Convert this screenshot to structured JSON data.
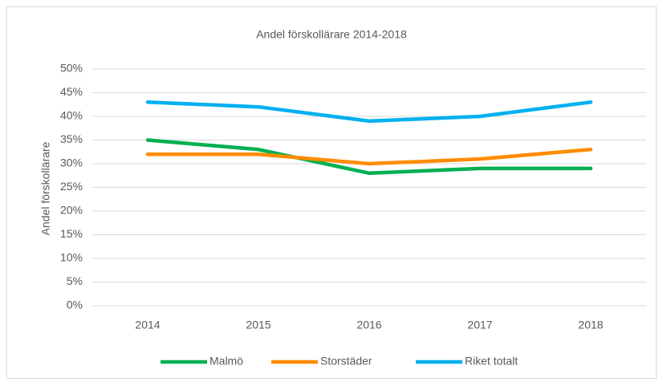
{
  "chart_data": {
    "type": "line",
    "title": "Andel förskollärare 2014-2018",
    "y_label": "Andel förskollärare",
    "categories": [
      "2014",
      "2015",
      "2016",
      "2017",
      "2018"
    ],
    "series": [
      {
        "name": "Malmö",
        "color": "#00b050",
        "values": [
          35,
          33,
          28,
          29,
          29
        ]
      },
      {
        "name": "Storstäder",
        "color": "#ff8c00",
        "values": [
          32,
          32,
          30,
          31,
          33
        ]
      },
      {
        "name": "Riket totalt",
        "color": "#00b0f0",
        "values": [
          43,
          42,
          39,
          40,
          43
        ]
      }
    ],
    "ylim": [
      0,
      50
    ],
    "yticks": [
      {
        "value": 0,
        "label": "0%"
      },
      {
        "value": 5,
        "label": "5%"
      },
      {
        "value": 10,
        "label": "10%"
      },
      {
        "value": 15,
        "label": "15%"
      },
      {
        "value": 20,
        "label": "20%"
      },
      {
        "value": 25,
        "label": "25%"
      },
      {
        "value": 30,
        "label": "30%"
      },
      {
        "value": 35,
        "label": "35%"
      },
      {
        "value": 40,
        "label": "40%"
      },
      {
        "value": 45,
        "label": "45%"
      },
      {
        "value": 50,
        "label": "50%"
      }
    ],
    "grid": true,
    "legend": "bottom"
  }
}
